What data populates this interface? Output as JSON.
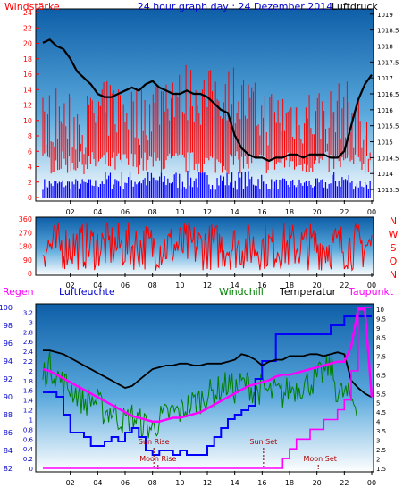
{
  "colors": {
    "wind": "#ff0000",
    "gust": "#ff0000",
    "pressure": "#000000",
    "wind_low": "#0000ff",
    "direction": "#ff0000",
    "humidity": "#0000ff",
    "windchill": "#008000",
    "temperature": "#000000",
    "dewpoint": "#ff00ff",
    "rain": "#ff00ff",
    "plot_top": "#0e5fa8",
    "plot_bottom": "#ffffff"
  },
  "chart_data": [
    {
      "type": "line",
      "title": "24 hour graph day : 24 Dezember 2014",
      "left_label": "Windstärke",
      "right_label": "Luftdruck",
      "x_ticks": [
        "02",
        "04",
        "06",
        "08",
        "10",
        "12",
        "14",
        "16",
        "18",
        "20",
        "22",
        "00"
      ],
      "y_left_ticks": [
        "0",
        "2",
        "4",
        "6",
        "8",
        "10",
        "12",
        "14",
        "16",
        "18",
        "20",
        "22",
        "24"
      ],
      "y_left_range": [
        0,
        24
      ],
      "y_right_ticks": [
        "1013.5",
        "1014",
        "1014.5",
        "1015",
        "1015.5",
        "1016",
        "1016.5",
        "1017",
        "1017.5",
        "1018",
        "1018.5",
        "1019"
      ],
      "y_right_range": [
        1013.25,
        1019.05
      ],
      "series": [
        {
          "name": "Windstärke",
          "color_key": "wind",
          "x": [
            0,
            1,
            2,
            3,
            4,
            5,
            6,
            7,
            8,
            9,
            10,
            11,
            12,
            13,
            14,
            15,
            16,
            17,
            18,
            19,
            20,
            21,
            22,
            23,
            24
          ],
          "y": [
            8,
            9,
            8,
            8,
            9,
            10,
            10,
            9,
            10,
            12,
            12,
            12,
            11,
            12,
            12,
            10,
            9,
            9,
            9,
            9,
            9,
            9,
            10,
            8,
            4
          ]
        },
        {
          "name": "Luftdruck",
          "color_key": "pressure",
          "x": [
            0,
            0.5,
            1,
            1.5,
            2,
            2.5,
            3,
            3.5,
            4,
            4.5,
            5,
            5.5,
            6,
            6.5,
            7,
            7.5,
            8,
            8.5,
            9,
            9.5,
            10,
            10.5,
            11,
            11.5,
            12,
            12.5,
            13,
            13.5,
            14,
            14.5,
            15,
            15.5,
            16,
            16.5,
            17,
            17.5,
            18,
            18.5,
            19,
            19.5,
            20,
            20.5,
            21,
            21.5,
            22,
            22.5,
            23,
            23.5,
            24
          ],
          "y": [
            1018.1,
            1018.2,
            1018.0,
            1017.9,
            1017.6,
            1017.2,
            1017.0,
            1016.8,
            1016.5,
            1016.4,
            1016.4,
            1016.5,
            1016.6,
            1016.7,
            1016.6,
            1016.8,
            1016.9,
            1016.7,
            1016.6,
            1016.5,
            1016.5,
            1016.6,
            1016.5,
            1016.5,
            1016.4,
            1016.2,
            1016.0,
            1015.9,
            1015.2,
            1014.8,
            1014.6,
            1014.5,
            1014.5,
            1014.4,
            1014.5,
            1014.5,
            1014.6,
            1014.6,
            1014.5,
            1014.6,
            1014.6,
            1014.6,
            1014.5,
            1014.5,
            1014.7,
            1015.5,
            1016.3,
            1016.8,
            1017.1
          ]
        }
      ]
    },
    {
      "type": "scatter",
      "title": "",
      "x_ticks": [
        "02",
        "04",
        "06",
        "08",
        "10",
        "12",
        "14",
        "16",
        "18",
        "20",
        "22",
        "00"
      ],
      "y_ticks": [
        "0",
        "90",
        "180",
        "270",
        "360"
      ],
      "y_range": [
        0,
        360
      ],
      "compass_labels": [
        "N",
        "W",
        "S",
        "O",
        "N"
      ],
      "series": [
        {
          "name": "",
          "color_key": "direction",
          "y_min": 20,
          "y_max": 340
        }
      ]
    },
    {
      "type": "line",
      "title": "",
      "labels": {
        "rain": "Regen",
        "humidity": "Luftfeuchte",
        "windchill": "Windchill",
        "temperature": "Temperatur",
        "dewpoint": "Taupunkt"
      },
      "annotations": [
        "Sun Rise",
        "Moon Rise",
        "Sun Set",
        "Moon Set"
      ],
      "x_ticks": [
        "02",
        "04",
        "06",
        "08",
        "10",
        "12",
        "14",
        "16",
        "18",
        "20",
        "22",
        "00"
      ],
      "y_humidity_ticks": [
        "82",
        "84",
        "86",
        "88",
        "90",
        "92",
        "94",
        "96",
        "98",
        "100"
      ],
      "y_humidity_range": [
        82,
        100
      ],
      "y_rain_ticks": [
        "0",
        "0.2",
        "0.4",
        "0.6",
        "0.8",
        "1",
        "1.2",
        "1.4",
        "1.6",
        "1.8",
        "2",
        "2.2",
        "2.4",
        "2.6",
        "2.8",
        "3",
        "3.2"
      ],
      "y_rain_range": [
        0,
        3.3
      ],
      "y_temp_ticks": [
        "1.5",
        "2",
        "2.5",
        "3",
        "3.5",
        "4",
        "4.5",
        "5",
        "5.5",
        "6",
        "6.5",
        "7",
        "7.5",
        "8",
        "8.5",
        "9",
        "9.5",
        "10"
      ],
      "y_temp_range": [
        1.5,
        10.1
      ],
      "series": [
        {
          "name": "Luftfeuchte",
          "color_key": "humidity",
          "axis": "humidity",
          "x": [
            0,
            0.5,
            1,
            1.5,
            2,
            2.5,
            3,
            3.5,
            4,
            4.5,
            5,
            5.5,
            6,
            6.5,
            7,
            7.5,
            8,
            8.5,
            9,
            9.5,
            10,
            10.5,
            11,
            11.5,
            12,
            12.5,
            13,
            13.5,
            14,
            14.5,
            15,
            15.5,
            16,
            16.5,
            17,
            17.5,
            18,
            18.5,
            19,
            19.5,
            20,
            20.5,
            21,
            21.5,
            22,
            22.5,
            23,
            23.5,
            24
          ],
          "y": [
            90.5,
            90.5,
            90,
            88,
            86,
            86,
            85.5,
            84.5,
            84.5,
            85,
            85.5,
            85,
            86,
            86.5,
            85.5,
            84,
            83.5,
            84,
            84,
            83.5,
            84,
            83.5,
            83.5,
            83.5,
            84.5,
            85.5,
            86.5,
            87.5,
            88,
            88.5,
            89,
            92,
            94,
            94,
            97,
            97,
            97,
            97,
            97,
            97,
            97,
            97,
            98,
            98,
            99,
            99,
            99,
            99,
            99
          ]
        },
        {
          "name": "Windchill",
          "color_key": "windchill",
          "axis": "temp",
          "x": [
            0,
            0.5,
            1,
            1.5,
            2,
            2.5,
            3,
            3.5,
            4,
            4.5,
            5,
            5.5,
            6,
            6.5,
            7,
            7.5,
            8,
            8.5,
            9,
            9.5,
            10,
            10.5,
            11,
            11.5,
            12,
            12.5,
            13,
            13.5,
            14,
            14.5,
            15,
            15.5,
            16,
            16.5,
            17,
            17.5,
            18,
            18.5,
            19,
            19.5,
            20,
            20.5,
            21,
            21.5,
            22,
            22.5,
            23,
            23.5,
            24
          ],
          "y": [
            6.5,
            7,
            6.5,
            6,
            5.8,
            5.5,
            5,
            5.2,
            5,
            4.5,
            4.6,
            4.2,
            4,
            4.3,
            4,
            3.8,
            3.6,
            4.1,
            4.3,
            4.5,
            4.5,
            4.8,
            5,
            5.2,
            5.5,
            5.5,
            5.8,
            6,
            5.7,
            6,
            6,
            5.5,
            5.8,
            5.5,
            5.6,
            5.4,
            5.8,
            5.8,
            6,
            6.1,
            6.3,
            6.6,
            7,
            5.5,
            5.5,
            5.2,
            5,
            4.8,
            4.8
          ]
        },
        {
          "name": "Temperatur",
          "color_key": "temperature",
          "axis": "temp",
          "x": [
            0,
            0.5,
            1,
            1.5,
            2,
            2.5,
            3,
            3.5,
            4,
            4.5,
            5,
            5.5,
            6,
            6.5,
            7,
            7.5,
            8,
            8.5,
            9,
            9.5,
            10,
            10.5,
            11,
            11.5,
            12,
            12.5,
            13,
            13.5,
            14,
            14.5,
            15,
            15.5,
            16,
            16.5,
            17,
            17.5,
            18,
            18.5,
            19,
            19.5,
            20,
            20.5,
            21,
            21.5,
            22,
            22.5,
            23,
            23.5,
            24
          ],
          "y": [
            7.8,
            7.8,
            7.7,
            7.6,
            7.4,
            7.2,
            7,
            6.8,
            6.6,
            6.4,
            6.2,
            6,
            5.8,
            5.9,
            6.2,
            6.5,
            6.8,
            6.9,
            7,
            7,
            7.1,
            7.1,
            7,
            7,
            7.1,
            7.1,
            7.1,
            7.2,
            7.3,
            7.6,
            7.5,
            7.3,
            7,
            7.2,
            7.3,
            7.3,
            7.5,
            7.5,
            7.5,
            7.6,
            7.6,
            7.5,
            7.6,
            7.7,
            7.6,
            6.2,
            5.8,
            5.5,
            5.3
          ]
        },
        {
          "name": "Taupunkt",
          "color_key": "dewpoint",
          "axis": "temp",
          "x": [
            0,
            0.5,
            1,
            1.5,
            2,
            2.5,
            3,
            3.5,
            4,
            4.5,
            5,
            5.5,
            6,
            6.5,
            7,
            7.5,
            8,
            8.5,
            9,
            9.5,
            10,
            10.5,
            11,
            11.5,
            12,
            12.5,
            13,
            13.5,
            14,
            14.5,
            15,
            15.5,
            16,
            16.5,
            17,
            17.5,
            18,
            18.5,
            19,
            19.5,
            20,
            20.5,
            21,
            21.5,
            22,
            22.5,
            23,
            23.5,
            24
          ],
          "y": [
            6.8,
            6.7,
            6.5,
            6.3,
            6.1,
            5.9,
            5.7,
            5.5,
            5.3,
            5.1,
            4.9,
            4.7,
            4.5,
            4.3,
            4.2,
            4.1,
            4.0,
            4.0,
            4.1,
            4.2,
            4.2,
            4.3,
            4.4,
            4.5,
            4.7,
            4.9,
            5.1,
            5.3,
            5.5,
            5.7,
            5.9,
            6.0,
            6.1,
            6.2,
            6.4,
            6.5,
            6.5,
            6.6,
            6.7,
            6.8,
            6.9,
            7,
            7.1,
            7.2,
            7.2,
            8,
            10,
            10,
            5.3
          ]
        },
        {
          "name": "Regen",
          "color_key": "rain",
          "axis": "rain",
          "x": [
            0,
            17,
            17.5,
            18,
            18.5,
            19,
            19.5,
            20,
            20.5,
            21,
            21.5,
            22,
            22.5,
            23,
            23.5,
            24
          ],
          "y": [
            0,
            0,
            0.2,
            0.4,
            0.6,
            0.6,
            0.8,
            0.8,
            1.0,
            1.0,
            1.2,
            1.4,
            2.0,
            3.3,
            3.3,
            3.3
          ]
        }
      ]
    }
  ]
}
